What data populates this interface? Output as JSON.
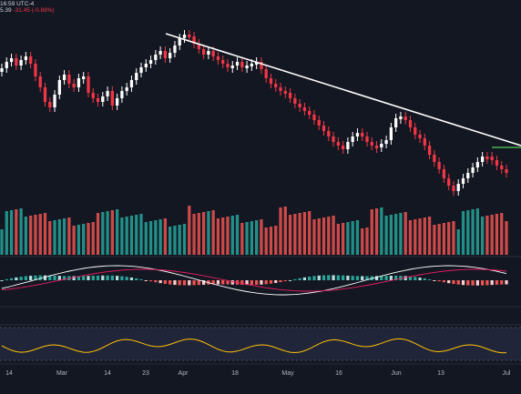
{
  "header": {
    "time_label": "16:59 UTC-4",
    "price_fragment": "5.39",
    "change_label": "-31.45 (-0.88%)"
  },
  "colors": {
    "background": "#131722",
    "up": "#ffffff",
    "down": "#f23645",
    "vol_up": "#26a69a",
    "vol_down": "#ef5350",
    "trendline": "#ffffff",
    "level_line": "#4caf50",
    "macd_line": "#ffffff",
    "signal_line": "#e91e63",
    "rsi_line": "#ffc107",
    "rsi_band": "#2a2e49"
  },
  "x_axis": {
    "labels": [
      "14",
      "Mar",
      "14",
      "23",
      "Apr",
      "18",
      "May",
      "16",
      "Jun",
      "13",
      "Jul"
    ]
  },
  "indicators": {
    "volume": "volume-histogram",
    "macd": "macd-panel",
    "rsi": "rsi-panel"
  }
}
